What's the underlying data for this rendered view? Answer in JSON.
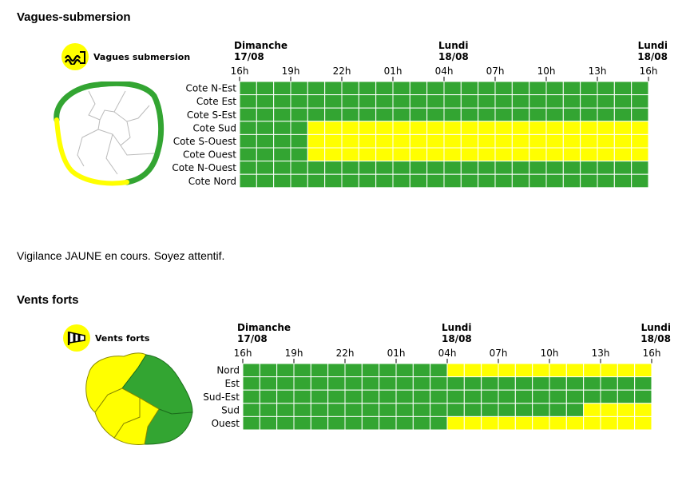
{
  "colors": {
    "green": "#33a532",
    "yellow": "#ffff00",
    "grid_line": "#ffffff"
  },
  "sections": [
    {
      "title": "Vagues-submersion",
      "badge_label": "Vagues submersion",
      "badge_icon": "waves-icon",
      "day_labels": [
        {
          "day": "Dimanche",
          "date": "17/08"
        },
        {
          "day": "Lundi",
          "date": "18/08"
        },
        {
          "day": "Lundi",
          "date": "18/08"
        }
      ],
      "hour_labels": [
        "16h",
        "19h",
        "22h",
        "01h",
        "04h",
        "07h",
        "10h",
        "13h",
        "16h"
      ],
      "rows": [
        {
          "name": "Cote N-Est",
          "cells": "GGGGGGGGGGGGGGGGGGGGGGGG"
        },
        {
          "name": "Cote Est",
          "cells": "GGGGGGGGGGGGGGGGGGGGGGGG"
        },
        {
          "name": "Cote S-Est",
          "cells": "GGGGGGGGGGGGGGGGGGGGGGGG"
        },
        {
          "name": "Cote Sud",
          "cells": "GGGGYYYYYYYYYYYYYYYYYYYY"
        },
        {
          "name": "Cote S-Ouest",
          "cells": "GGGGYYYYYYYYYYYYYYYYYYYY"
        },
        {
          "name": "Cote Ouest",
          "cells": "GGGGYYYYYYYYYYYYYYYYYYYY"
        },
        {
          "name": "Cote N-Ouest",
          "cells": "GGGGGGGGGGGGGGGGGGGGGGGG"
        },
        {
          "name": "Cote Nord",
          "cells": "GGGGGGGGGGGGGGGGGGGGGGGG"
        }
      ]
    },
    {
      "title": "Vents forts",
      "badge_label": "Vents forts",
      "badge_icon": "windsock-icon",
      "day_labels": [
        {
          "day": "Dimanche",
          "date": "17/08"
        },
        {
          "day": "Lundi",
          "date": "18/08"
        },
        {
          "day": "Lundi",
          "date": "18/08"
        }
      ],
      "hour_labels": [
        "16h",
        "19h",
        "22h",
        "01h",
        "04h",
        "07h",
        "10h",
        "13h",
        "16h"
      ],
      "rows": [
        {
          "name": "Nord",
          "cells": "GGGGGGGGGGGGYYYYYYYYYYYY"
        },
        {
          "name": "Est",
          "cells": "GGGGGGGGGGGGGGGGGGGGGGGG"
        },
        {
          "name": "Sud-Est",
          "cells": "GGGGGGGGGGGGGGGGGGGGGGGG"
        },
        {
          "name": "Sud",
          "cells": "GGGGGGGGGGGGGGGGGGGGYYYY"
        },
        {
          "name": "Ouest",
          "cells": "GGGGGGGGGGGGYYYYYYYYYYYY"
        }
      ]
    }
  ],
  "message": "Vigilance JAUNE en cours. Soyez attentif."
}
